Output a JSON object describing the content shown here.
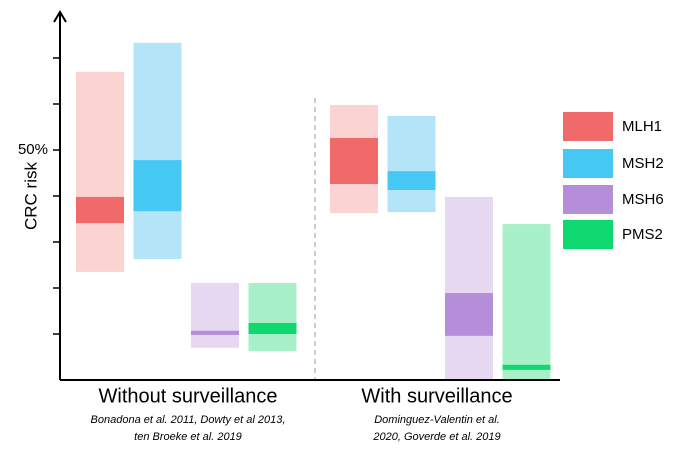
{
  "chart_data": {
    "type": "range_bar",
    "y_label": "CRC risk",
    "ylim": [
      0,
      80
    ],
    "yticks": [
      {
        "value": 50,
        "label": "50%"
      }
    ],
    "yticks_unlabeled": [
      10,
      20,
      30,
      40,
      60,
      70
    ],
    "groups": [
      {
        "label": "Without surveillance",
        "citation": [
          "Bonadona et al. 2011, Dowty et al  2013,",
          "ten Broeke et al. 2019"
        ]
      },
      {
        "label": "With surveillance",
        "citation": [
          "Dominguez-Valentin et al.",
          "2020, Goverde et al. 2019"
        ]
      }
    ],
    "series": [
      {
        "name": "MLH1",
        "color": "#f06a6a",
        "range_color": "#fcd3d3",
        "low": [
          23.5,
          36.3
        ],
        "high": [
          67,
          59.8
        ],
        "core_low": [
          34.1,
          42.6
        ],
        "core_high": [
          39.8,
          52.6
        ]
      },
      {
        "name": "MSH2",
        "color": "#46c8f4",
        "range_color": "#b3e4f8",
        "low": [
          26.3,
          36.5
        ],
        "high": [
          73.3,
          57.4
        ],
        "core_low": [
          36.7,
          41.3
        ],
        "core_high": [
          47.8,
          45.4
        ]
      },
      {
        "name": "MSH6",
        "color": "#b48ed8",
        "range_color": "#e5d8f0",
        "low": [
          7,
          0
        ],
        "high": [
          21.1,
          39.8
        ],
        "core_low": [
          9.8,
          9.6
        ],
        "core_high": [
          10.7,
          18.9
        ]
      },
      {
        "name": "PMS2",
        "color": "#10d870",
        "range_color": "#a8f0c8",
        "low": [
          6.3,
          0
        ],
        "high": [
          21.1,
          33.9
        ],
        "core_low": [
          10,
          2.2
        ],
        "core_high": [
          12.4,
          3.3
        ]
      }
    ]
  }
}
